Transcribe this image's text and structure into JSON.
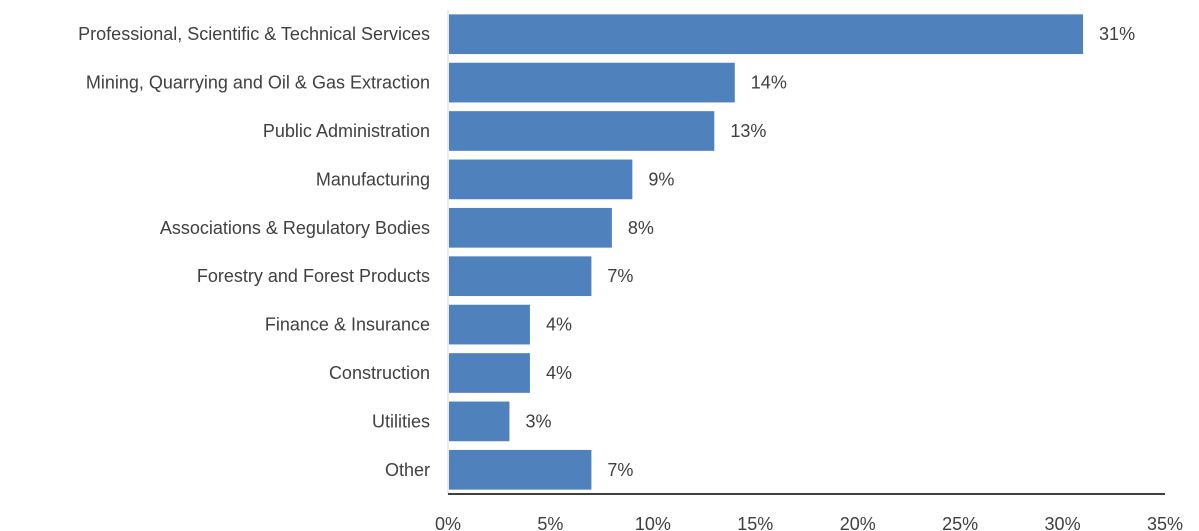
{
  "chart_data": {
    "type": "bar",
    "orientation": "horizontal",
    "categories": [
      "Professional, Scientific & Technical Services",
      "Mining, Quarrying and Oil & Gas Extraction",
      "Public Administration",
      "Manufacturing",
      "Associations & Regulatory Bodies",
      "Forestry and Forest Products",
      "Finance & Insurance",
      "Construction",
      "Utilities",
      "Other"
    ],
    "values": [
      31,
      14,
      13,
      9,
      8,
      7,
      4,
      4,
      3,
      7
    ],
    "value_labels": [
      "31%",
      "14%",
      "13%",
      "9%",
      "8%",
      "7%",
      "4%",
      "4%",
      "3%",
      "7%"
    ],
    "xlim": [
      0,
      35
    ],
    "x_ticks": [
      0,
      5,
      10,
      15,
      20,
      25,
      30,
      35
    ],
    "x_tick_labels": [
      "0%",
      "5%",
      "10%",
      "15%",
      "20%",
      "25%",
      "30%",
      "35%"
    ],
    "title": "",
    "xlabel": "",
    "ylabel": "",
    "grid": false,
    "legend": "none",
    "colors": {
      "bar": "#4F81BD",
      "text": "#404040",
      "axis": "#000000"
    }
  }
}
